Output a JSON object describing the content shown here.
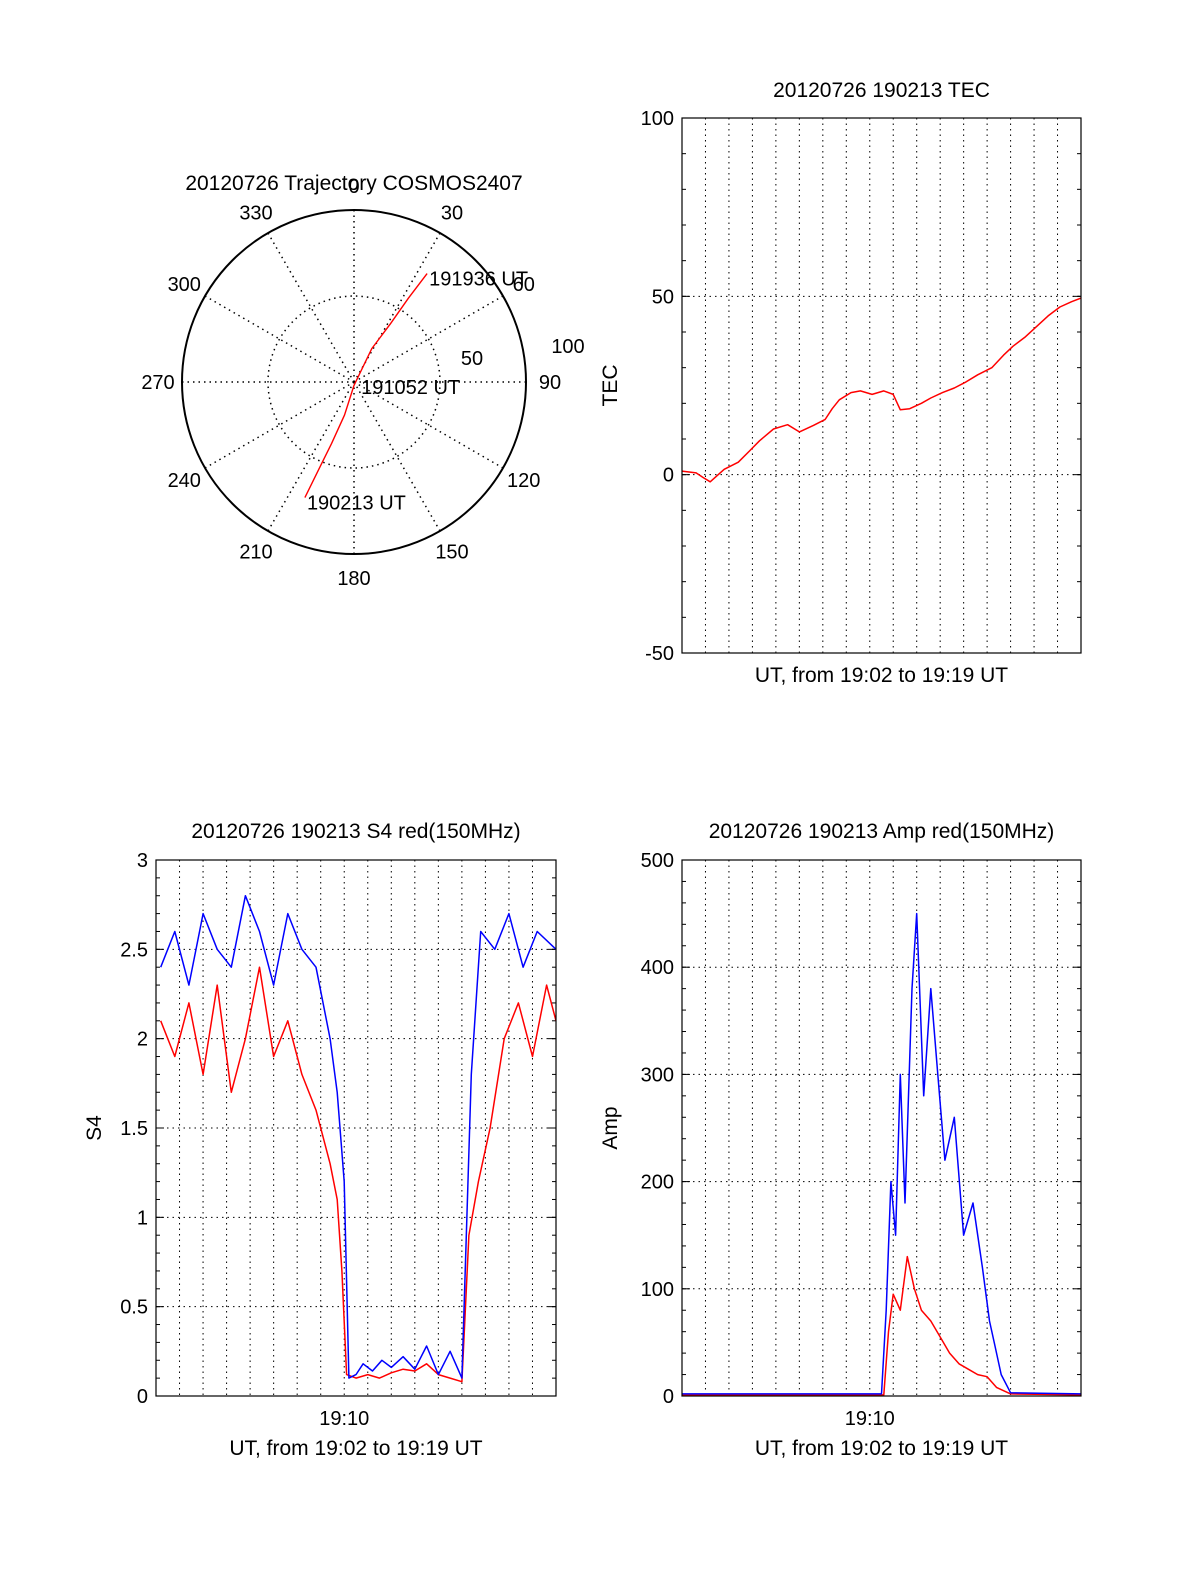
{
  "colors": {
    "red": "#ff0000",
    "blue": "#0000ff",
    "axis": "#000000",
    "grid": "#000000"
  },
  "chart_data": [
    {
      "id": "trajectory",
      "type": "polar",
      "title": "20120726 Trajectory COSMOS2407",
      "azimuth_ticks": [
        "0",
        "30",
        "60",
        "90",
        "120",
        "150",
        "180",
        "210",
        "240",
        "270",
        "300",
        "330"
      ],
      "radius_ticks": [
        "50",
        "100"
      ],
      "r_max": 100,
      "grid": true,
      "series": [
        {
          "color": "red",
          "points": [
            [
              203,
              73
            ],
            [
              202,
              55
            ],
            [
              200,
              38
            ],
            [
              196,
              20
            ],
            [
              180,
              2
            ],
            [
              28,
              22
            ],
            [
              32,
              40
            ],
            [
              33,
              58
            ],
            [
              34,
              76
            ]
          ]
        }
      ],
      "annotations": [
        {
          "text": "191936 UT",
          "az": 34,
          "r": 76
        },
        {
          "text": "191052 UT",
          "az": 90,
          "r": 3
        },
        {
          "text": "190213 UT",
          "az": 203,
          "r": 73
        }
      ]
    },
    {
      "id": "tec",
      "type": "line",
      "title": "20120726 190213 TEC",
      "xlabel": "UT, from 19:02 to 19:19 UT",
      "ylabel": "TEC",
      "xlim": [
        0,
        17
      ],
      "ylim": [
        -50,
        100
      ],
      "yticks": [
        "-50",
        "0",
        "50",
        "100"
      ],
      "grid": true,
      "series": [
        {
          "color": "red",
          "x": [
            0,
            0.6,
            0.9,
            1.2,
            1.8,
            2.4,
            2.9,
            3.3,
            3.9,
            4.5,
            5.0,
            5.6,
            6.1,
            6.4,
            6.7,
            7.2,
            7.6,
            8.1,
            8.6,
            9.0,
            9.3,
            9.7,
            10.2,
            10.6,
            11.1,
            11.6,
            12.1,
            12.6,
            13.2,
            13.7,
            14.1,
            14.6,
            15.1,
            15.6,
            16.1,
            16.6,
            17.0
          ],
          "y": [
            1,
            0.5,
            -0.8,
            -2,
            1.5,
            3.5,
            6.8,
            9.5,
            12.8,
            14,
            12,
            13.8,
            15.5,
            18.5,
            21,
            23,
            23.5,
            22.5,
            23.5,
            22.5,
            18.2,
            18.5,
            20,
            21.5,
            23,
            24.3,
            26,
            28,
            30,
            33.5,
            36,
            38.5,
            41.5,
            44.5,
            47,
            48.5,
            49.5
          ]
        }
      ]
    },
    {
      "id": "s4",
      "type": "line",
      "title": "20120726 190213 S4 red(150MHz)",
      "xlabel": "UT, from 19:02 to 19:19 UT",
      "ylabel": "S4",
      "xlim": [
        0,
        17
      ],
      "ylim": [
        0,
        3
      ],
      "yticks": [
        "0",
        "0.5",
        "1",
        "1.5",
        "2",
        "2.5",
        "3"
      ],
      "xticks": [
        {
          "x": 8,
          "label": "19:10"
        }
      ],
      "grid": true,
      "series": [
        {
          "color": "red",
          "x": [
            0.2,
            0.8,
            1.4,
            2.0,
            2.6,
            3.2,
            3.8,
            4.4,
            5.0,
            5.6,
            6.2,
            6.8,
            7.4,
            7.7,
            7.9,
            8.1,
            8.5,
            9.0,
            9.5,
            10.0,
            10.5,
            11.0,
            11.5,
            12.0,
            12.5,
            13.0,
            13.3,
            13.7,
            14.2,
            14.8,
            15.4,
            16.0,
            16.6,
            17.0
          ],
          "y": [
            2.1,
            1.9,
            2.2,
            1.8,
            2.3,
            1.7,
            2.0,
            2.4,
            1.9,
            2.1,
            1.8,
            1.6,
            1.3,
            1.1,
            0.7,
            0.12,
            0.1,
            0.12,
            0.1,
            0.13,
            0.15,
            0.14,
            0.18,
            0.12,
            0.1,
            0.08,
            0.9,
            1.2,
            1.5,
            2.0,
            2.2,
            1.9,
            2.3,
            2.1
          ]
        },
        {
          "color": "blue",
          "x": [
            0.2,
            0.8,
            1.4,
            2.0,
            2.6,
            3.2,
            3.8,
            4.4,
            5.0,
            5.6,
            6.2,
            6.8,
            7.4,
            7.7,
            8.0,
            8.2,
            8.5,
            8.8,
            9.2,
            9.6,
            10.0,
            10.5,
            11.0,
            11.5,
            12.0,
            12.5,
            13.0,
            13.4,
            13.8,
            14.4,
            15.0,
            15.6,
            16.2,
            17.0
          ],
          "y": [
            2.4,
            2.6,
            2.3,
            2.7,
            2.5,
            2.4,
            2.8,
            2.6,
            2.3,
            2.7,
            2.5,
            2.4,
            2.0,
            1.7,
            1.2,
            0.1,
            0.12,
            0.18,
            0.14,
            0.2,
            0.16,
            0.22,
            0.15,
            0.28,
            0.12,
            0.25,
            0.1,
            1.8,
            2.6,
            2.5,
            2.7,
            2.4,
            2.6,
            2.5
          ]
        }
      ]
    },
    {
      "id": "amp",
      "type": "line",
      "title": "20120726 190213 Amp red(150MHz)",
      "xlabel": "UT, from 19:02 to 19:19 UT",
      "ylabel": "Amp",
      "xlim": [
        0,
        17
      ],
      "ylim": [
        0,
        500
      ],
      "yticks": [
        "0",
        "100",
        "200",
        "300",
        "400",
        "500"
      ],
      "xticks": [
        {
          "x": 8,
          "label": "19:10"
        }
      ],
      "grid": true,
      "series": [
        {
          "color": "red",
          "x": [
            0,
            4,
            8.6,
            8.8,
            9.0,
            9.3,
            9.6,
            9.9,
            10.2,
            10.6,
            11.0,
            11.4,
            11.8,
            12.2,
            12.6,
            13.0,
            13.4,
            14.0,
            17.0
          ],
          "y": [
            1,
            1,
            1,
            60,
            95,
            80,
            130,
            100,
            80,
            70,
            55,
            40,
            30,
            25,
            20,
            18,
            8,
            2,
            1
          ]
        },
        {
          "color": "blue",
          "x": [
            0,
            4,
            8.5,
            8.7,
            8.9,
            9.1,
            9.3,
            9.5,
            9.8,
            10.0,
            10.3,
            10.6,
            10.9,
            11.2,
            11.6,
            12.0,
            12.4,
            12.8,
            13.1,
            13.3,
            13.6,
            14.0,
            17.0
          ],
          "y": [
            2,
            2,
            2,
            80,
            200,
            150,
            300,
            180,
            380,
            450,
            280,
            380,
            300,
            220,
            260,
            150,
            180,
            120,
            70,
            50,
            20,
            3,
            2
          ]
        }
      ]
    }
  ]
}
